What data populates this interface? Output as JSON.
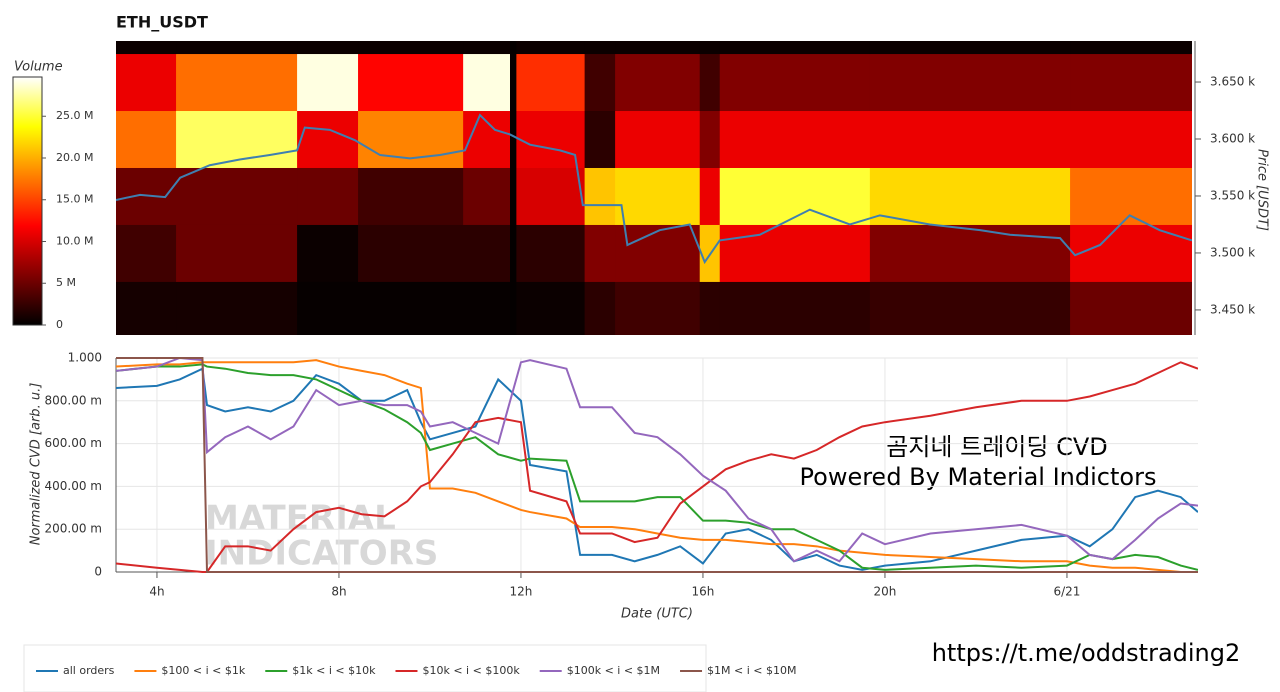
{
  "chart_data": [
    {
      "type": "heatmap",
      "title": "ETH_USDT",
      "colorbar_title": "Volume",
      "colormap": "hot",
      "clim": [
        0,
        29.7
      ],
      "cticks": [
        0,
        {
          "value": 5,
          "label": "5 M"
        },
        {
          "value": 10,
          "label": "10.0 M"
        },
        {
          "value": 15,
          "label": "15.0 M"
        },
        {
          "value": 20,
          "label": "20.0 M"
        },
        {
          "value": 25,
          "label": "25.0 M"
        }
      ],
      "y_label": "Price [USDT]",
      "xlim": [
        3.1,
        26.75
      ],
      "ylim": [
        3.428,
        3.686
      ],
      "yticks": [
        {
          "value": 3.45,
          "label": "3.450 k"
        },
        {
          "value": 3.5,
          "label": "3.500 k"
        },
        {
          "value": 3.55,
          "label": "3.550 k"
        },
        {
          "value": 3.6,
          "label": "3.600 k"
        },
        {
          "value": 3.65,
          "label": "3.650 k"
        }
      ],
      "x_edges": [
        3.1,
        4.42,
        7.08,
        8.42,
        10.73,
        11.76,
        11.9,
        13.4,
        14.07,
        15.93,
        16.37,
        19.67,
        24.07,
        26.75
      ],
      "y_edges": [
        3.425,
        3.475,
        3.525,
        3.575,
        3.625,
        3.675,
        3.725
      ],
      "z": [
        [
          1,
          1,
          0.3,
          0.3,
          0.3,
          0.2,
          0.5,
          2,
          3,
          2,
          2,
          2.5,
          5
        ],
        [
          3,
          5,
          0.5,
          2,
          2,
          0.2,
          2,
          6,
          6,
          21,
          11,
          6,
          11
        ],
        [
          5,
          5,
          5,
          3,
          5,
          0.3,
          10,
          21,
          22,
          11,
          25,
          22,
          17
        ],
        [
          17,
          26,
          11,
          18,
          11,
          0.3,
          11,
          2,
          11,
          6,
          11,
          11,
          11
        ],
        [
          11,
          17,
          29,
          12,
          29,
          0.3,
          14,
          3,
          6,
          3,
          6,
          6,
          6
        ],
        [
          0.5,
          0.5,
          0.5,
          0.5,
          0.5,
          0.2,
          0.5,
          0.5,
          0.5,
          0.5,
          0.5,
          0.5,
          0.5
        ]
      ],
      "price": {
        "color": "#3f7fb0",
        "x": [
          3.1,
          3.63,
          4.18,
          4.51,
          5.16,
          5.82,
          6.48,
          7.08,
          7.25,
          7.8,
          8.35,
          8.9,
          9.56,
          10.22,
          10.77,
          11.1,
          11.43,
          11.76,
          12.2,
          12.86,
          13.19,
          13.36,
          14.21,
          14.34,
          15.05,
          15.71,
          16.04,
          16.37,
          17.25,
          18.35,
          19.23,
          19.89,
          20.99,
          22.09,
          22.75,
          23.85,
          24.18,
          24.73,
          25.38,
          26.04,
          26.75
        ],
        "values": [
          3.5465,
          3.551,
          3.549,
          3.566,
          3.577,
          3.582,
          3.586,
          3.59,
          3.61,
          3.608,
          3.599,
          3.586,
          3.583,
          3.586,
          3.59,
          3.621,
          3.608,
          3.604,
          3.595,
          3.59,
          3.586,
          3.542,
          3.542,
          3.507,
          3.52,
          3.525,
          3.492,
          3.511,
          3.516,
          3.538,
          3.525,
          3.533,
          3.525,
          3.52,
          3.516,
          3.513,
          3.498,
          3.507,
          3.533,
          3.52,
          3.511
        ]
      }
    },
    {
      "type": "line",
      "x_label": "Date (UTC)",
      "y_label": "Normalized CVD [arb. u.]",
      "xlim": [
        3.1,
        26.88
      ],
      "ylim": [
        0,
        1.0
      ],
      "grid": true,
      "legend": "bottom",
      "xticks": [
        {
          "value": 4,
          "label": "4h"
        },
        {
          "value": 8,
          "label": "8h"
        },
        {
          "value": 12,
          "label": "12h"
        },
        {
          "value": 16,
          "label": "16h"
        },
        {
          "value": 20,
          "label": "20h"
        },
        {
          "value": 24,
          "label": "6/21"
        }
      ],
      "yticks": [
        0,
        {
          "value": 0.2,
          "label": "200.00 m"
        },
        {
          "value": 0.4,
          "label": "400.00 m"
        },
        {
          "value": 0.6,
          "label": "600.00 m"
        },
        {
          "value": 0.8,
          "label": "800.00 m"
        },
        {
          "value": 1,
          "label": "1.000"
        }
      ],
      "annotations": [
        "곰지네 트레이딩 CVD",
        "Powered By Material Indictors"
      ],
      "watermark": [
        "MATERIAL",
        "INDICATORS"
      ],
      "x": [
        3.1,
        4,
        4.5,
        5.0,
        5.1,
        5.5,
        6,
        6.5,
        7,
        7.5,
        8,
        8.5,
        9,
        9.5,
        9.8,
        10,
        10.5,
        11,
        11.5,
        12,
        12.2,
        13,
        13.3,
        14,
        14.5,
        15,
        15.5,
        16,
        16.5,
        17,
        17.5,
        18,
        18.5,
        19,
        19.5,
        20,
        21,
        22,
        23,
        24,
        24.5,
        25,
        25.5,
        26,
        26.5,
        26.88
      ],
      "series": [
        {
          "name": "all orders",
          "color": "#1f77b4",
          "values": [
            0.86,
            0.87,
            0.9,
            0.95,
            0.78,
            0.75,
            0.77,
            0.75,
            0.8,
            0.92,
            0.88,
            0.8,
            0.8,
            0.85,
            0.7,
            0.62,
            0.65,
            0.68,
            0.9,
            0.8,
            0.5,
            0.47,
            0.08,
            0.08,
            0.05,
            0.08,
            0.12,
            0.04,
            0.18,
            0.2,
            0.15,
            0.05,
            0.08,
            0.03,
            0.01,
            0.03,
            0.05,
            0.1,
            0.15,
            0.17,
            0.12,
            0.2,
            0.35,
            0.38,
            0.35,
            0.28
          ]
        },
        {
          "name": "$100 < i < $1k",
          "color": "#ff7f0e",
          "values": [
            0.96,
            0.97,
            0.97,
            0.98,
            0.98,
            0.98,
            0.98,
            0.98,
            0.98,
            0.99,
            0.96,
            0.94,
            0.92,
            0.88,
            0.86,
            0.39,
            0.39,
            0.37,
            0.33,
            0.29,
            0.28,
            0.25,
            0.21,
            0.21,
            0.2,
            0.18,
            0.16,
            0.15,
            0.15,
            0.14,
            0.13,
            0.13,
            0.12,
            0.1,
            0.09,
            0.08,
            0.07,
            0.06,
            0.05,
            0.05,
            0.03,
            0.02,
            0.02,
            0.01,
            0,
            0
          ]
        },
        {
          "name": "$1k < i < $10k",
          "color": "#2ca02c",
          "values": [
            0.94,
            0.96,
            0.96,
            0.97,
            0.96,
            0.95,
            0.93,
            0.92,
            0.92,
            0.9,
            0.85,
            0.8,
            0.76,
            0.7,
            0.65,
            0.57,
            0.6,
            0.63,
            0.55,
            0.52,
            0.53,
            0.52,
            0.33,
            0.33,
            0.33,
            0.35,
            0.35,
            0.24,
            0.24,
            0.23,
            0.2,
            0.2,
            0.15,
            0.1,
            0.02,
            0.01,
            0.02,
            0.03,
            0.02,
            0.03,
            0.08,
            0.06,
            0.08,
            0.07,
            0.03,
            0.01
          ]
        },
        {
          "name": "$10k < i < $100k",
          "color": "#d62728",
          "values": [
            0.04,
            0.02,
            0.01,
            0,
            0,
            0.12,
            0.12,
            0.1,
            0.2,
            0.28,
            0.3,
            0.27,
            0.26,
            0.33,
            0.4,
            0.42,
            0.55,
            0.7,
            0.72,
            0.7,
            0.38,
            0.33,
            0.18,
            0.18,
            0.14,
            0.16,
            0.32,
            0.4,
            0.48,
            0.52,
            0.55,
            0.53,
            0.57,
            0.63,
            0.68,
            0.7,
            0.73,
            0.77,
            0.8,
            0.8,
            0.82,
            0.85,
            0.88,
            0.93,
            0.98,
            0.95
          ]
        },
        {
          "name": "$100k < i < $1M",
          "color": "#9467bd",
          "values": [
            0.94,
            0.96,
            1.0,
            0.99,
            0.56,
            0.63,
            0.68,
            0.62,
            0.68,
            0.85,
            0.78,
            0.8,
            0.78,
            0.78,
            0.75,
            0.68,
            0.7,
            0.65,
            0.6,
            0.98,
            0.99,
            0.95,
            0.77,
            0.77,
            0.65,
            0.63,
            0.55,
            0.45,
            0.38,
            0.25,
            0.2,
            0.05,
            0.1,
            0.05,
            0.18,
            0.13,
            0.18,
            0.2,
            0.22,
            0.17,
            0.08,
            0.06,
            0.15,
            0.25,
            0.32,
            0.31
          ]
        },
        {
          "name": "$1M < i < $10M",
          "color": "#8c564b",
          "values": [
            1.0,
            1.0,
            1.0,
            1.0,
            0,
            0,
            0,
            0,
            0,
            0,
            0,
            0,
            0,
            0,
            0,
            0,
            0,
            0,
            0,
            0,
            0,
            0,
            0,
            0,
            0,
            0,
            0,
            0,
            0,
            0,
            0,
            0,
            0,
            0,
            0,
            0,
            0,
            0,
            0,
            0,
            0,
            0,
            0,
            0,
            0,
            0
          ]
        }
      ]
    }
  ],
  "footer": "https://t.me/oddstrading2"
}
